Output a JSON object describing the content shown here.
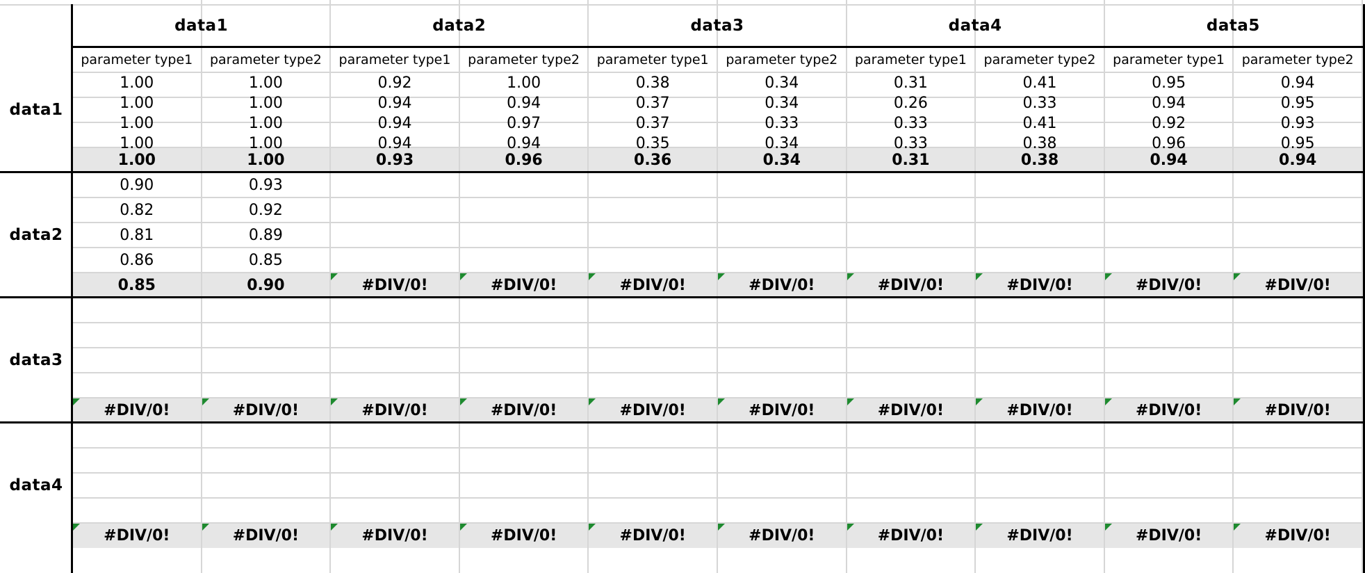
{
  "top_headers": [
    "data1",
    "data2",
    "data3",
    "data4",
    "data5"
  ],
  "sub_headers": [
    "parameter type1",
    "parameter type2",
    "parameter type1",
    "parameter type2",
    "parameter type1",
    "parameter type2",
    "parameter type1",
    "parameter type2",
    "parameter type1",
    "parameter type2"
  ],
  "blocks": [
    {
      "label": "data1",
      "rows": [
        [
          "1.00",
          "1.00",
          "0.92",
          "1.00",
          "0.38",
          "0.34",
          "0.31",
          "0.41",
          "0.95",
          "0.94"
        ],
        [
          "1.00",
          "1.00",
          "0.94",
          "0.94",
          "0.37",
          "0.34",
          "0.26",
          "0.33",
          "0.94",
          "0.95"
        ],
        [
          "1.00",
          "1.00",
          "0.94",
          "0.97",
          "0.37",
          "0.33",
          "0.33",
          "0.41",
          "0.92",
          "0.93"
        ],
        [
          "1.00",
          "1.00",
          "0.94",
          "0.94",
          "0.35",
          "0.34",
          "0.33",
          "0.38",
          "0.96",
          "0.95"
        ]
      ],
      "summary": [
        "1.00",
        "1.00",
        "0.93",
        "0.96",
        "0.36",
        "0.34",
        "0.31",
        "0.38",
        "0.94",
        "0.94"
      ]
    },
    {
      "label": "data2",
      "rows": [
        [
          "0.90",
          "0.93",
          "",
          "",
          "",
          "",
          "",
          "",
          "",
          ""
        ],
        [
          "0.82",
          "0.92",
          "",
          "",
          "",
          "",
          "",
          "",
          "",
          ""
        ],
        [
          "0.81",
          "0.89",
          "",
          "",
          "",
          "",
          "",
          "",
          "",
          ""
        ],
        [
          "0.86",
          "0.85",
          "",
          "",
          "",
          "",
          "",
          "",
          "",
          ""
        ]
      ],
      "summary": [
        "0.85",
        "0.90",
        "#DIV/0!",
        "#DIV/0!",
        "#DIV/0!",
        "#DIV/0!",
        "#DIV/0!",
        "#DIV/0!",
        "#DIV/0!",
        "#DIV/0!"
      ]
    },
    {
      "label": "data3",
      "rows": [
        [
          "",
          "",
          "",
          "",
          "",
          "",
          "",
          "",
          "",
          ""
        ],
        [
          "",
          "",
          "",
          "",
          "",
          "",
          "",
          "",
          "",
          ""
        ],
        [
          "",
          "",
          "",
          "",
          "",
          "",
          "",
          "",
          "",
          ""
        ],
        [
          "",
          "",
          "",
          "",
          "",
          "",
          "",
          "",
          "",
          ""
        ]
      ],
      "summary": [
        "#DIV/0!",
        "#DIV/0!",
        "#DIV/0!",
        "#DIV/0!",
        "#DIV/0!",
        "#DIV/0!",
        "#DIV/0!",
        "#DIV/0!",
        "#DIV/0!",
        "#DIV/0!"
      ]
    },
    {
      "label": "data4",
      "rows": [
        [
          "",
          "",
          "",
          "",
          "",
          "",
          "",
          "",
          "",
          ""
        ],
        [
          "",
          "",
          "",
          "",
          "",
          "",
          "",
          "",
          "",
          ""
        ],
        [
          "",
          "",
          "",
          "",
          "",
          "",
          "",
          "",
          "",
          ""
        ],
        [
          "",
          "",
          "",
          "",
          "",
          "",
          "",
          "",
          "",
          ""
        ]
      ],
      "summary": [
        "#DIV/0!",
        "#DIV/0!",
        "#DIV/0!",
        "#DIV/0!",
        "#DIV/0!",
        "#DIV/0!",
        "#DIV/0!",
        "#DIV/0!",
        "#DIV/0!",
        "#DIV/0!"
      ]
    }
  ],
  "colors": {
    "summary_fill": "#e6e6e6",
    "error_flag": "#1e8a2f",
    "gridline": "#d6d6d6",
    "border": "#000000"
  }
}
